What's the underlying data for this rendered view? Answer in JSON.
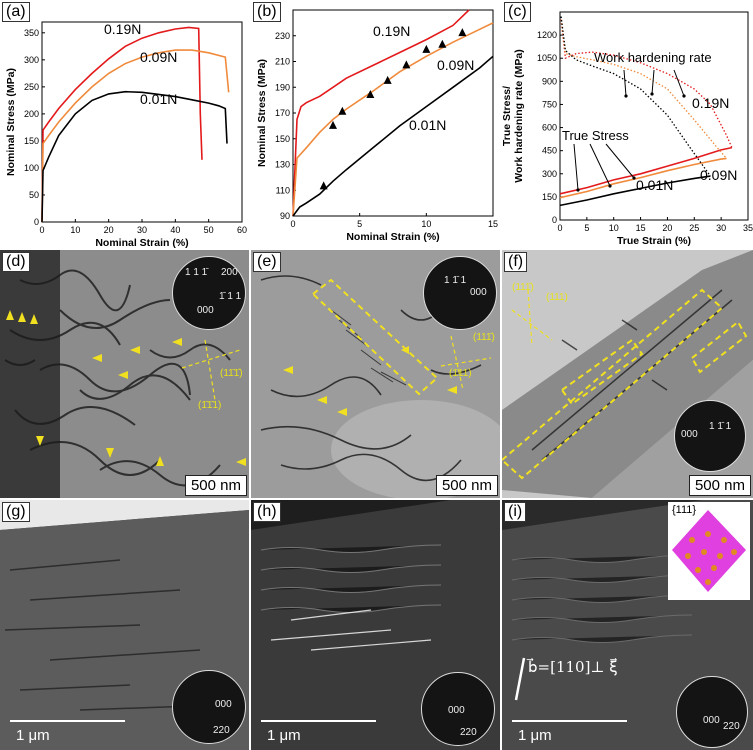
{
  "panels": {
    "a": {
      "label": "(a)"
    },
    "b": {
      "label": "(b)"
    },
    "c": {
      "label": "(c)"
    },
    "d": {
      "label": "(d)",
      "scale": "500 nm",
      "diffraction": {
        "labels": [
          "1 1 1̄",
          "200",
          "1̄ 1 1",
          "000"
        ]
      },
      "ann": [
        "(11̄1̄)",
        "(1̄1̄1)"
      ]
    },
    "e": {
      "label": "(e)",
      "scale": "500 nm",
      "diffraction": {
        "labels": [
          "1 1̄ 1",
          "000"
        ]
      },
      "ann": [
        "(111̄)",
        "(1̄11)"
      ]
    },
    "f": {
      "label": "(f)",
      "scale": "500 nm",
      "diffraction": {
        "labels": [
          "000",
          "1 1̄ 1"
        ]
      },
      "ann": [
        "(111̄)",
        "(111)"
      ]
    },
    "g": {
      "label": "(g)",
      "scale": "1 μm",
      "diffraction": {
        "labels": [
          "000",
          "220"
        ]
      }
    },
    "h": {
      "label": "(h)",
      "scale": "1 μm",
      "diffraction": {
        "labels": [
          "000",
          "220"
        ]
      }
    },
    "i": {
      "label": "(i)",
      "scale": "1 μm",
      "diffraction": {
        "labels": [
          "000",
          "220"
        ]
      },
      "burgers": "b⃗=[110]⊥ ξ⃗",
      "inset_label": "{111}"
    }
  },
  "colors": {
    "red": "#e31a1c",
    "orange": "#f08a3c",
    "black": "#000000",
    "yellow": "#f0e020"
  },
  "chart_data": [
    {
      "type": "line",
      "xlabel": "Nominal Strain (%)",
      "ylabel": "Nominal Stress (MPa)",
      "xlim": [
        0,
        60
      ],
      "ylim": [
        0,
        370
      ],
      "xticks": [
        0,
        10,
        20,
        30,
        40,
        50,
        60
      ],
      "yticks": [
        0,
        50,
        100,
        150,
        200,
        250,
        300,
        350
      ],
      "series": [
        {
          "name": "0.19N",
          "color": "red",
          "x": [
            0,
            0.3,
            2,
            5,
            10,
            15,
            20,
            25,
            30,
            35,
            40,
            44,
            47,
            47.5,
            48
          ],
          "y": [
            0,
            170,
            185,
            210,
            245,
            275,
            302,
            325,
            340,
            350,
            357,
            360,
            358,
            200,
            115
          ]
        },
        {
          "name": "0.09N",
          "color": "orange",
          "x": [
            0,
            0.3,
            2,
            5,
            10,
            15,
            20,
            25,
            30,
            35,
            40,
            45,
            50,
            55,
            56
          ],
          "y": [
            0,
            145,
            160,
            185,
            220,
            250,
            275,
            293,
            305,
            313,
            318,
            318,
            313,
            305,
            240
          ]
        },
        {
          "name": "0.01N",
          "color": "black",
          "x": [
            0,
            0.3,
            2,
            5,
            10,
            15,
            20,
            25,
            30,
            35,
            40,
            45,
            50,
            53,
            55,
            55.5
          ],
          "y": [
            0,
            95,
            120,
            160,
            200,
            225,
            237,
            241,
            240,
            236,
            232,
            226,
            220,
            215,
            210,
            145
          ]
        }
      ],
      "labels": [
        "0.19N",
        "0.09N",
        "0.01N"
      ]
    },
    {
      "type": "line",
      "xlabel": "Nominal Strain (%)",
      "ylabel": "Nominal Stress (MPa)",
      "xlim": [
        0,
        15
      ],
      "ylim": [
        90,
        250
      ],
      "xticks": [
        0,
        5,
        10,
        15
      ],
      "yticks": [
        90,
        110,
        130,
        150,
        170,
        190,
        210,
        230
      ],
      "series": [
        {
          "name": "0.19N",
          "color": "red",
          "x": [
            0,
            0.3,
            0.6,
            1,
            2,
            3,
            4,
            6,
            8,
            10,
            12,
            13.2
          ],
          "y": [
            90,
            165,
            175,
            178,
            183,
            190,
            197,
            207,
            217,
            227,
            238,
            250
          ]
        },
        {
          "name": "0.09N",
          "color": "orange",
          "x": [
            0,
            0.3,
            1,
            2,
            3,
            4,
            6,
            8,
            10,
            12,
            14,
            15
          ],
          "y": [
            90,
            135,
            143,
            155,
            165,
            173,
            187,
            202,
            214,
            225,
            235,
            240
          ]
        },
        {
          "name": "0.01N",
          "color": "black",
          "x": [
            0,
            0.5,
            1,
            2,
            3,
            4,
            6,
            8,
            10,
            12,
            14,
            15
          ],
          "y": [
            90,
            97,
            100,
            107,
            117,
            126,
            143,
            160,
            175,
            190,
            205,
            214
          ]
        }
      ],
      "markers": {
        "x": [
          2.3,
          3.0,
          3.7,
          5.8,
          7.1,
          8.5,
          10.0,
          11.2,
          12.7
        ],
        "y": [
          113,
          160,
          171,
          184,
          195,
          207,
          219,
          223,
          232
        ]
      },
      "labels": [
        "0.19N",
        "0.09N",
        "0.01N"
      ]
    },
    {
      "type": "line",
      "xlabel": "True Strain (%)",
      "ylabel": "True Stress/ Work hardening rate (MPa)",
      "xlim": [
        0,
        35
      ],
      "ylim": [
        0,
        1350
      ],
      "xticks": [
        0,
        5,
        10,
        15,
        20,
        25,
        30,
        35
      ],
      "yticks": [
        0,
        150,
        300,
        450,
        600,
        750,
        900,
        1050,
        1200
      ],
      "series": [
        {
          "name": "0.19N true stress",
          "color": "red",
          "x": [
            0,
            5,
            10,
            15,
            20,
            25,
            30,
            32
          ],
          "y": [
            170,
            210,
            260,
            300,
            350,
            400,
            455,
            470
          ]
        },
        {
          "name": "0.09N true stress",
          "color": "orange",
          "x": [
            0,
            5,
            10,
            15,
            20,
            25,
            30,
            31
          ],
          "y": [
            145,
            185,
            235,
            275,
            320,
            360,
            395,
            400
          ]
        },
        {
          "name": "0.01N true stress",
          "color": "black",
          "x": [
            0,
            5,
            10,
            15,
            20,
            25,
            28
          ],
          "y": [
            95,
            130,
            170,
            205,
            240,
            270,
            285
          ]
        },
        {
          "name": "0.19N hardening",
          "color": "red",
          "dotted": true,
          "x": [
            0.2,
            1,
            3,
            6,
            10,
            15,
            20,
            25,
            28,
            31,
            32
          ],
          "y": [
            1300,
            1050,
            1080,
            1090,
            1070,
            1020,
            950,
            850,
            750,
            550,
            470
          ]
        },
        {
          "name": "0.09N hardening",
          "color": "orange",
          "dotted": true,
          "x": [
            0.2,
            1,
            3,
            6,
            10,
            15,
            20,
            25,
            29,
            31
          ],
          "y": [
            1300,
            1080,
            1060,
            1040,
            1010,
            950,
            850,
            650,
            480,
            400
          ]
        },
        {
          "name": "0.01N hardening",
          "color": "black",
          "dotted": true,
          "x": [
            0.2,
            1,
            3,
            6,
            10,
            15,
            20,
            24,
            28
          ],
          "y": [
            1320,
            1100,
            1040,
            1000,
            950,
            850,
            680,
            480,
            285
          ]
        }
      ],
      "labels": [
        "Work hardening rate",
        "True Stress",
        "0.19N",
        "0.09N",
        "0.01N"
      ]
    }
  ]
}
